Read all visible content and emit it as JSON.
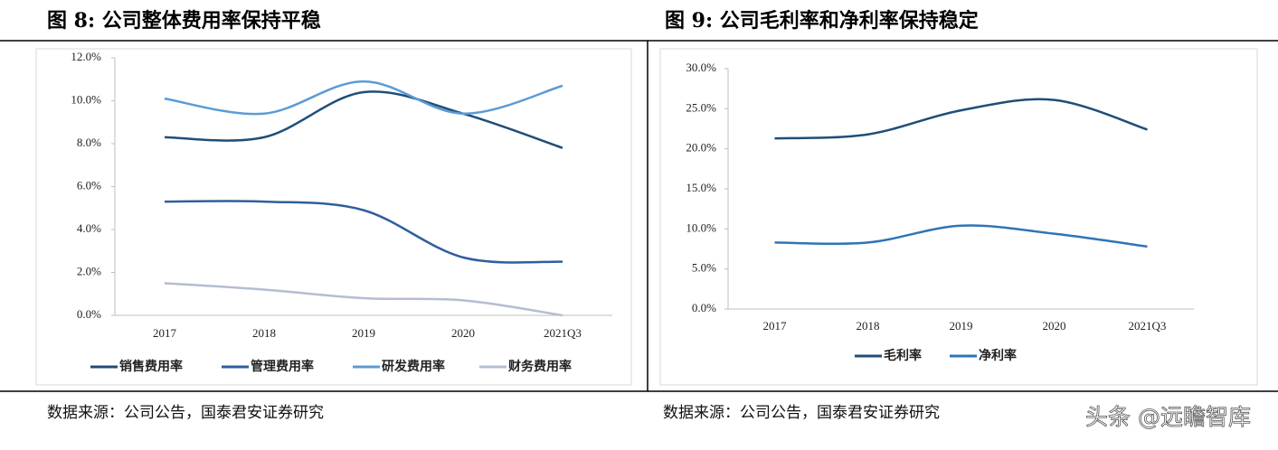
{
  "chart_data": [
    {
      "type": "line",
      "title": "图 8:  公司整体费用率保持平稳",
      "source": "数据来源：公司公告，国泰君安证券研究",
      "categories": [
        "2017",
        "2018",
        "2019",
        "2020",
        "2021Q3"
      ],
      "series": [
        {
          "name": "销售费用率",
          "color": "#1f4e79",
          "values": [
            8.3,
            8.3,
            10.4,
            9.4,
            7.8
          ]
        },
        {
          "name": "管理费用率",
          "color": "#2e5f9e",
          "values": [
            5.3,
            5.3,
            4.9,
            2.7,
            2.5
          ]
        },
        {
          "name": "研发费用率",
          "color": "#5b9bd5",
          "values": [
            10.1,
            9.4,
            10.9,
            9.4,
            10.7
          ]
        },
        {
          "name": "财务费用率",
          "color": "#b5bdd2",
          "values": [
            1.5,
            1.2,
            0.8,
            0.7,
            0.0
          ]
        }
      ],
      "ylim": [
        0,
        12
      ],
      "yticks": [
        {
          "value": 0,
          "label": "0.0%"
        },
        {
          "value": 2,
          "label": "2.0%"
        },
        {
          "value": 4,
          "label": "4.0%"
        },
        {
          "value": 6,
          "label": "6.0%"
        },
        {
          "value": 8,
          "label": "8.0%"
        },
        {
          "value": 10,
          "label": "10.0%"
        },
        {
          "value": 12,
          "label": "12.0%"
        }
      ],
      "smooth": true
    },
    {
      "type": "line",
      "title": "图 9:  公司毛利率和净利率保持稳定",
      "source": "数据来源：公司公告，国泰君安证券研究",
      "categories": [
        "2017",
        "2018",
        "2019",
        "2020",
        "2021Q3"
      ],
      "series": [
        {
          "name": "毛利率",
          "color": "#1f4e79",
          "values": [
            21.3,
            21.8,
            24.8,
            26.1,
            22.4
          ]
        },
        {
          "name": "净利率",
          "color": "#2e75b6",
          "values": [
            8.3,
            8.3,
            10.4,
            9.4,
            7.8
          ]
        }
      ],
      "ylim": [
        0,
        30
      ],
      "yticks": [
        {
          "value": 0,
          "label": "0.0%"
        },
        {
          "value": 5,
          "label": "5.0%"
        },
        {
          "value": 10,
          "label": "10.0%"
        },
        {
          "value": 15,
          "label": "15.0%"
        },
        {
          "value": 20,
          "label": "20.0%"
        },
        {
          "value": 25,
          "label": "25.0%"
        },
        {
          "value": 30,
          "label": "30.0%"
        }
      ],
      "smooth": true
    }
  ],
  "watermark": "头条 @远瞻智库"
}
